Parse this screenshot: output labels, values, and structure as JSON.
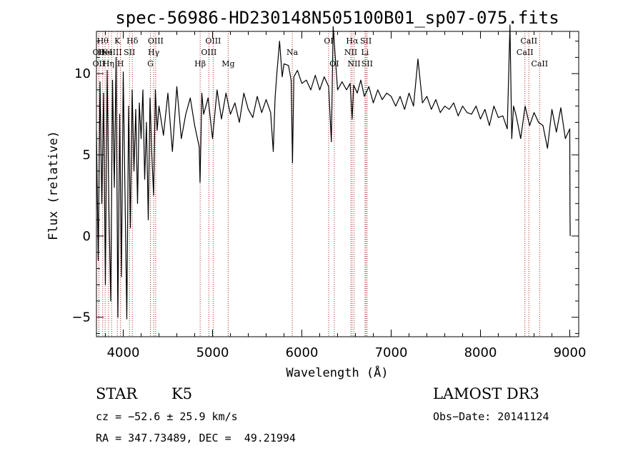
{
  "chart_data": {
    "type": "line",
    "title": "spec-56986-HD230148N505100B01_sp07-075.fits",
    "xlabel": "Wavelength (Å)",
    "ylabel": "Flux (relative)",
    "xlim": [
      3700,
      9100
    ],
    "ylim": [
      -6.2,
      12.6
    ],
    "xticks": [
      4000,
      5000,
      6000,
      7000,
      8000,
      9000
    ],
    "yticks": [
      -5,
      0,
      5,
      10
    ],
    "series": [
      {
        "name": "flux",
        "x": [
          3700,
          3720,
          3740,
          3760,
          3780,
          3800,
          3820,
          3840,
          3860,
          3880,
          3900,
          3920,
          3940,
          3960,
          3980,
          4000,
          4020,
          4040,
          4060,
          4080,
          4100,
          4120,
          4140,
          4160,
          4180,
          4200,
          4220,
          4240,
          4260,
          4280,
          4300,
          4320,
          4340,
          4360,
          4380,
          4400,
          4450,
          4500,
          4550,
          4600,
          4650,
          4700,
          4750,
          4800,
          4850,
          4860,
          4880,
          4900,
          4950,
          5000,
          5050,
          5100,
          5150,
          5200,
          5250,
          5300,
          5350,
          5400,
          5450,
          5500,
          5550,
          5600,
          5650,
          5680,
          5700,
          5720,
          5750,
          5780,
          5800,
          5850,
          5880,
          5895,
          5910,
          5950,
          6000,
          6050,
          6100,
          6150,
          6200,
          6250,
          6300,
          6330,
          6350,
          6400,
          6450,
          6500,
          6540,
          6563,
          6580,
          6620,
          6660,
          6700,
          6750,
          6800,
          6850,
          6900,
          6950,
          7000,
          7050,
          7100,
          7150,
          7200,
          7250,
          7300,
          7350,
          7400,
          7450,
          7500,
          7550,
          7600,
          7650,
          7700,
          7750,
          7800,
          7850,
          7900,
          7950,
          8000,
          8050,
          8100,
          8150,
          8200,
          8250,
          8300,
          8330,
          8350,
          8370,
          8400,
          8450,
          8500,
          8550,
          8600,
          8650,
          8700,
          8750,
          8800,
          8850,
          8900,
          8950,
          9000,
          9002,
          9005
        ],
        "y": [
          6.5,
          -1.5,
          9.5,
          2.0,
          8.8,
          -3.0,
          10.2,
          1.5,
          -4.0,
          9.6,
          3.0,
          11.0,
          -5.0,
          7.5,
          -2.5,
          10.1,
          2.5,
          -5.1,
          8.0,
          0.5,
          9.0,
          4.0,
          7.8,
          2.0,
          8.2,
          6.0,
          9.0,
          3.5,
          7.0,
          1.0,
          8.5,
          5.0,
          2.5,
          9.0,
          6.5,
          8.0,
          6.2,
          8.8,
          5.2,
          9.2,
          6.0,
          7.5,
          8.5,
          6.8,
          5.5,
          3.3,
          8.8,
          7.5,
          8.5,
          6.0,
          9.0,
          7.2,
          8.8,
          7.5,
          8.2,
          7.0,
          8.8,
          7.8,
          7.3,
          8.6,
          7.6,
          8.4,
          7.6,
          5.2,
          8.5,
          10.0,
          12.0,
          9.8,
          10.6,
          10.5,
          9.6,
          4.5,
          9.8,
          10.2,
          9.4,
          9.6,
          9.0,
          9.9,
          9.0,
          9.8,
          9.2,
          5.8,
          12.9,
          9.0,
          9.5,
          9.0,
          9.4,
          7.2,
          9.3,
          8.8,
          9.6,
          8.6,
          9.2,
          8.2,
          9.0,
          8.4,
          8.8,
          8.6,
          8.0,
          8.6,
          7.8,
          8.8,
          8.0,
          10.9,
          8.2,
          8.6,
          7.8,
          8.4,
          7.6,
          8.0,
          7.8,
          8.2,
          7.4,
          8.0,
          7.6,
          7.5,
          8.0,
          7.2,
          7.8,
          6.8,
          8.0,
          7.3,
          7.4,
          6.6,
          13.0,
          6.0,
          8.0,
          7.4,
          6.0,
          8.0,
          6.8,
          7.6,
          7.0,
          6.8,
          5.4,
          7.8,
          6.4,
          7.9,
          6.0,
          6.6,
          1.5,
          0.0
        ]
      }
    ],
    "line_markers": [
      {
        "wl": 3727,
        "row": 0,
        "label": "OII"
      },
      {
        "wl": 3727,
        "row": 1,
        "label": "OII"
      },
      {
        "wl": 3770,
        "row": 2,
        "label": "Hθ"
      },
      {
        "wl": 3797,
        "row": 1,
        "label": "HeI"
      },
      {
        "wl": 3835,
        "row": 0,
        "label": "Hη"
      },
      {
        "wl": 3869,
        "row": 1,
        "label": "NeIII"
      },
      {
        "wl": 3934,
        "row": 2,
        "label": "K"
      },
      {
        "wl": 3969,
        "row": 0,
        "label": "H"
      },
      {
        "wl": 4070,
        "row": 1,
        "label": "SII"
      },
      {
        "wl": 4102,
        "row": 2,
        "label": "Hδ"
      },
      {
        "wl": 4304,
        "row": 0,
        "label": "G"
      },
      {
        "wl": 4341,
        "row": 1,
        "label": "Hγ"
      },
      {
        "wl": 4363,
        "row": 2,
        "label": "OIII"
      },
      {
        "wl": 4861,
        "row": 0,
        "label": "Hβ"
      },
      {
        "wl": 4959,
        "row": 1,
        "label": "OIII"
      },
      {
        "wl": 5007,
        "row": 2,
        "label": "OIII"
      },
      {
        "wl": 5175,
        "row": 0,
        "label": "Mg"
      },
      {
        "wl": 5893,
        "row": 1,
        "label": "Na"
      },
      {
        "wl": 6300,
        "row": 2,
        "label": "OI"
      },
      {
        "wl": 6363,
        "row": 0,
        "label": "OI"
      },
      {
        "wl": 6548,
        "row": 1,
        "label": "NII"
      },
      {
        "wl": 6563,
        "row": 2,
        "label": "Hα"
      },
      {
        "wl": 6584,
        "row": 0,
        "label": "NII"
      },
      {
        "wl": 6707,
        "row": 1,
        "label": "Li"
      },
      {
        "wl": 6717,
        "row": 2,
        "label": "SII"
      },
      {
        "wl": 6731,
        "row": 0,
        "label": "SII"
      },
      {
        "wl": 8498,
        "row": 1,
        "label": "CaII"
      },
      {
        "wl": 8542,
        "row": 2,
        "label": "CaII"
      },
      {
        "wl": 8662,
        "row": 0,
        "label": "CaII"
      }
    ]
  },
  "info": {
    "class": "STAR",
    "subclass": "K5",
    "cz": "cz = −52.6 ± 25.9 km/s",
    "coords": "RA = 347.73489, DEC =  49.21994",
    "survey": "LAMOST DR3",
    "obs_date": "Obs−Date: 20141124"
  },
  "colors": {
    "axis": "#000000",
    "line_marker": "#b22222",
    "spectrum": "#000000"
  }
}
